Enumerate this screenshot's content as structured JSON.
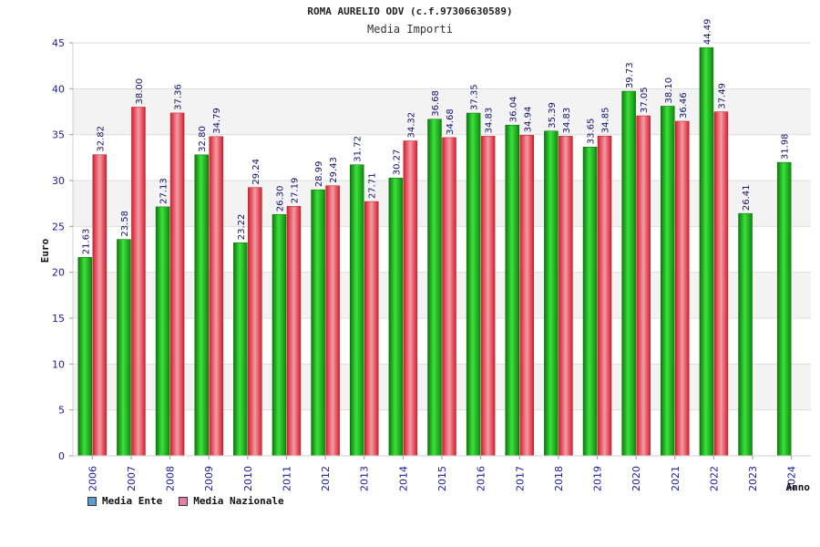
{
  "chart_data": {
    "type": "bar",
    "title": "ROMA AURELIO ODV (c.f.97306630589)",
    "subtitle": "Media Importi",
    "xlabel": "Anno",
    "ylabel": "Euro",
    "ylim": [
      0,
      45
    ],
    "yticks": [
      0,
      5,
      10,
      15,
      20,
      25,
      30,
      35,
      40,
      45
    ],
    "grid": true,
    "legend_position": "bottom-left",
    "categories": [
      "2006",
      "2007",
      "2008",
      "2009",
      "2010",
      "2011",
      "2012",
      "2013",
      "2014",
      "2015",
      "2016",
      "2017",
      "2018",
      "2019",
      "2020",
      "2021",
      "2022",
      "2023",
      "2024"
    ],
    "series": [
      {
        "name": "Media Ente",
        "legend_color": "#5b9bd5",
        "bar_color": "#1aa31a",
        "values": [
          21.63,
          23.58,
          27.13,
          32.8,
          23.22,
          26.3,
          28.99,
          31.72,
          30.27,
          36.68,
          37.35,
          36.04,
          35.39,
          33.65,
          39.73,
          38.1,
          44.49,
          26.41,
          31.98
        ],
        "labels": [
          "21.63",
          "23.58",
          "27.13",
          "32.80",
          "23.22",
          "26.30",
          "28.99",
          "31.72",
          "30.27",
          "36.68",
          "37.35",
          "36.04",
          "35.39",
          "33.65",
          "39.73",
          "38.10",
          "44.49",
          "26.41",
          "31.98"
        ]
      },
      {
        "name": "Media Nazionale",
        "legend_color": "#e87aa8",
        "bar_color": "#e8343f",
        "values": [
          32.82,
          38.0,
          37.36,
          34.79,
          29.24,
          27.19,
          29.43,
          27.71,
          34.32,
          34.68,
          34.83,
          34.94,
          34.83,
          34.85,
          37.05,
          36.46,
          37.49,
          null,
          null
        ],
        "labels": [
          "32.82",
          "38.00",
          "37.36",
          "34.79",
          "29.24",
          "27.19",
          "29.43",
          "27.71",
          "34.32",
          "34.68",
          "34.83",
          "34.94",
          "34.83",
          "34.85",
          "37.05",
          "36.46",
          "37.49",
          "",
          ""
        ]
      }
    ]
  }
}
